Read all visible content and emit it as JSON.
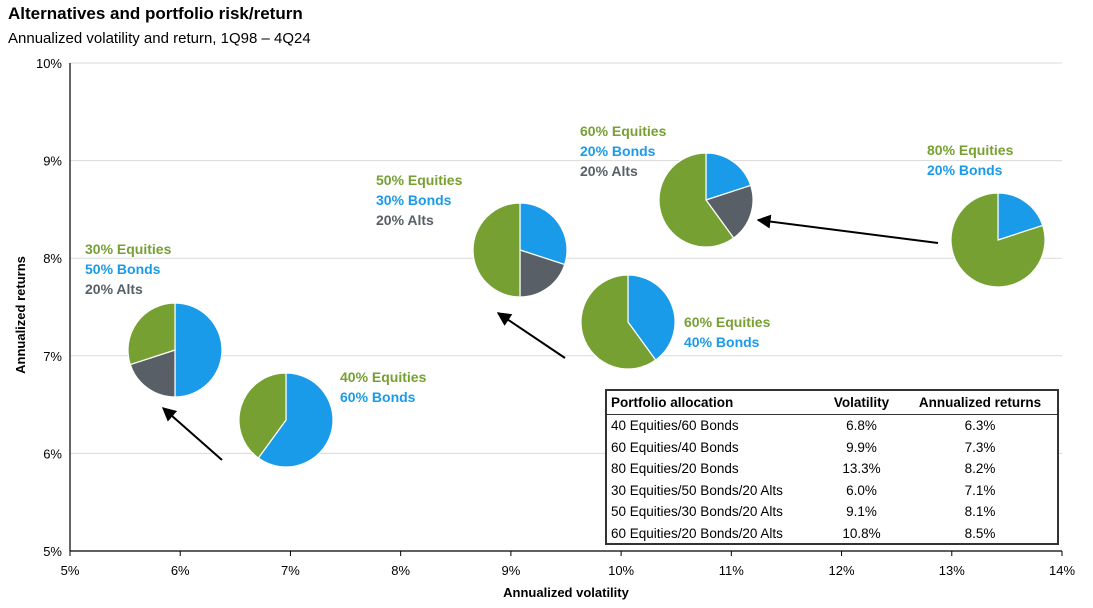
{
  "title": "Alternatives and portfolio risk/return",
  "subtitle": "Annualized volatility and return, 1Q98 – 4Q24",
  "colors": {
    "equities": "#76A032",
    "bonds": "#1A9BEA",
    "alts": "#595F66",
    "arrow": "#000000",
    "grid": "#D9D9D9"
  },
  "chart_data": {
    "type": "scatter",
    "title": "Alternatives and portfolio risk/return",
    "subtitle": "Annualized volatility and return, 1Q98 – 4Q24",
    "xlabel": "Annualized volatility",
    "ylabel": "Annualized returns",
    "xlim": [
      5,
      14
    ],
    "ylim": [
      5,
      10
    ],
    "x_ticks": [
      "5%",
      "6%",
      "7%",
      "8%",
      "9%",
      "10%",
      "11%",
      "12%",
      "13%",
      "14%"
    ],
    "y_ticks": [
      "5%",
      "6%",
      "7%",
      "8%",
      "9%",
      "10%"
    ],
    "points": [
      {
        "name": "40 Equities/60 Bonds",
        "x": 6.8,
        "y": 6.3,
        "label_lines": [
          {
            "text": "40% Equities",
            "color": "equities"
          },
          {
            "text": "60% Bonds",
            "color": "bonds"
          }
        ],
        "slices": [
          {
            "segment": "bonds",
            "pct": 60
          },
          {
            "segment": "equities",
            "pct": 40
          }
        ]
      },
      {
        "name": "30 Equities/50 Bonds/20 Alts",
        "x": 6.0,
        "y": 7.1,
        "label_lines": [
          {
            "text": "30% Equities",
            "color": "equities"
          },
          {
            "text": "50% Bonds",
            "color": "bonds"
          },
          {
            "text": "20% Alts",
            "color": "alts"
          }
        ],
        "slices": [
          {
            "segment": "bonds",
            "pct": 50
          },
          {
            "segment": "alts",
            "pct": 20
          },
          {
            "segment": "equities",
            "pct": 30
          }
        ]
      },
      {
        "name": "60 Equities/40 Bonds",
        "x": 9.9,
        "y": 7.3,
        "label_lines": [
          {
            "text": "60% Equities",
            "color": "equities"
          },
          {
            "text": "40% Bonds",
            "color": "bonds"
          }
        ],
        "slices": [
          {
            "segment": "bonds",
            "pct": 40
          },
          {
            "segment": "equities",
            "pct": 60
          }
        ]
      },
      {
        "name": "50 Equities/30 Bonds/20 Alts",
        "x": 9.1,
        "y": 8.1,
        "label_lines": [
          {
            "text": "50% Equities",
            "color": "equities"
          },
          {
            "text": "30% Bonds",
            "color": "bonds"
          },
          {
            "text": "20% Alts",
            "color": "alts"
          }
        ],
        "slices": [
          {
            "segment": "bonds",
            "pct": 30
          },
          {
            "segment": "alts",
            "pct": 20
          },
          {
            "segment": "equities",
            "pct": 50
          }
        ]
      },
      {
        "name": "80 Equities/20 Bonds",
        "x": 13.3,
        "y": 8.2,
        "label_lines": [
          {
            "text": "80% Equities",
            "color": "equities"
          },
          {
            "text": "20% Bonds",
            "color": "bonds"
          }
        ],
        "slices": [
          {
            "segment": "bonds",
            "pct": 20
          },
          {
            "segment": "equities",
            "pct": 80
          }
        ]
      },
      {
        "name": "60 Equities/20 Bonds/20 Alts",
        "x": 10.8,
        "y": 8.5,
        "label_lines": [
          {
            "text": "60% Equities",
            "color": "equities"
          },
          {
            "text": "20% Bonds",
            "color": "bonds"
          },
          {
            "text": "20% Alts",
            "color": "alts"
          }
        ],
        "slices": [
          {
            "segment": "bonds",
            "pct": 20
          },
          {
            "segment": "alts",
            "pct": 20
          },
          {
            "segment": "equities",
            "pct": 60
          }
        ]
      }
    ],
    "arrows": [
      {
        "from": "40 Equities/60 Bonds",
        "to": "30 Equities/50 Bonds/20 Alts"
      },
      {
        "from": "60 Equities/40 Bonds",
        "to": "50 Equities/30 Bonds/20 Alts"
      },
      {
        "from": "80 Equities/20 Bonds",
        "to": "60 Equities/20 Bonds/20 Alts"
      }
    ]
  },
  "table": {
    "headers": [
      "Portfolio allocation",
      "Volatility",
      "Annualized returns"
    ],
    "rows": [
      [
        "40 Equities/60 Bonds",
        "6.8%",
        "6.3%"
      ],
      [
        "60 Equities/40 Bonds",
        "9.9%",
        "7.3%"
      ],
      [
        "80 Equities/20 Bonds",
        "13.3%",
        "8.2%"
      ],
      [
        "30 Equities/50 Bonds/20 Alts",
        "6.0%",
        "7.1%"
      ],
      [
        "50 Equities/30 Bonds/20 Alts",
        "9.1%",
        "8.1%"
      ],
      [
        "60 Equities/20 Bonds/20 Alts",
        "10.8%",
        "8.5%"
      ]
    ]
  }
}
